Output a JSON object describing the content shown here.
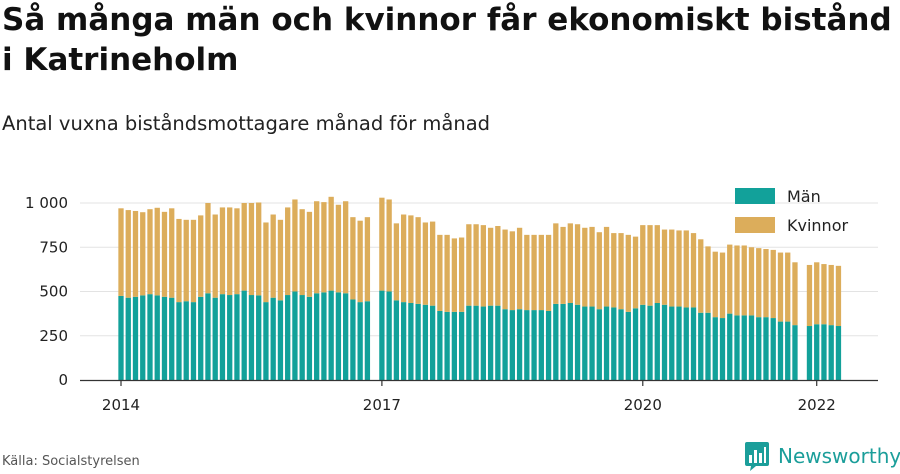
{
  "title": "Så många män och kvinnor får ekonomiskt bistånd i Katrineholm",
  "subtitle": "Antal vuxna biståndsmottagare månad för månad",
  "source": "Källa: Socialstyrelsen",
  "brand": {
    "name": "Newsworthy",
    "icon": "newsworthy-bar-chart-icon",
    "color": "#1b9e9a"
  },
  "colors": {
    "man": "#12a19a",
    "kvinnor": "#dcad5b",
    "grid": "#e3e3e3",
    "axis": "#333333"
  },
  "chart_data": {
    "type": "bar",
    "stacked": true,
    "x_start": "2014-01",
    "x_ticks": [
      "2014",
      "2017",
      "2020",
      "2022"
    ],
    "y_ticks": [
      0,
      250,
      500,
      750,
      1000
    ],
    "y_tick_labels": [
      "0",
      "250",
      "500",
      "750",
      "1 000"
    ],
    "ylim": [
      0,
      1000
    ],
    "legend_position": "top-right",
    "grid": true,
    "series": [
      {
        "name": "Män",
        "color": "#12a19a",
        "values": [
          475,
          465,
          470,
          478,
          485,
          478,
          470,
          465,
          440,
          445,
          440,
          470,
          490,
          465,
          485,
          480,
          485,
          505,
          480,
          478,
          440,
          465,
          450,
          480,
          500,
          480,
          470,
          490,
          495,
          505,
          495,
          490,
          455,
          440,
          445,
          null,
          505,
          500,
          450,
          440,
          435,
          430,
          425,
          420,
          390,
          385,
          385,
          385,
          420,
          420,
          415,
          420,
          420,
          400,
          395,
          400,
          395,
          395,
          395,
          390,
          430,
          430,
          435,
          425,
          415,
          415,
          400,
          415,
          410,
          400,
          385,
          405,
          425,
          420,
          435,
          425,
          415,
          415,
          410,
          410,
          380,
          380,
          355,
          350,
          375,
          365,
          365,
          365,
          355,
          355,
          350,
          330,
          330,
          310,
          null,
          305,
          315,
          315,
          310,
          305
        ]
      },
      {
        "name": "Kvinnor",
        "color": "#dcad5b",
        "values": [
          495,
          495,
          485,
          470,
          480,
          495,
          480,
          505,
          470,
          460,
          465,
          460,
          510,
          470,
          490,
          495,
          485,
          495,
          520,
          525,
          450,
          470,
          455,
          495,
          520,
          485,
          480,
          520,
          510,
          530,
          495,
          520,
          465,
          460,
          475,
          null,
          525,
          520,
          435,
          495,
          495,
          490,
          465,
          475,
          430,
          435,
          415,
          420,
          460,
          460,
          460,
          440,
          450,
          450,
          445,
          460,
          425,
          425,
          425,
          430,
          455,
          435,
          450,
          455,
          445,
          450,
          435,
          450,
          420,
          430,
          435,
          405,
          450,
          455,
          440,
          425,
          435,
          430,
          435,
          420,
          415,
          375,
          370,
          370,
          390,
          395,
          395,
          385,
          390,
          385,
          385,
          390,
          390,
          355,
          null,
          345,
          350,
          340,
          340,
          340
        ]
      }
    ]
  }
}
